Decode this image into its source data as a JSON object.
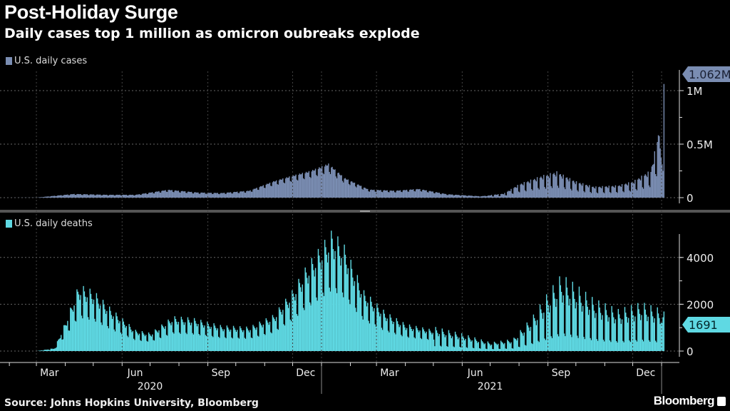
{
  "header": {
    "title": "Post-Holiday Surge",
    "subtitle": "Daily cases top 1 million as omicron oubreaks explode"
  },
  "footer": {
    "source": "Source: Johns Hopkins University, Bloomberg",
    "logo": "Bloomberg"
  },
  "chart_data": [
    {
      "type": "bar",
      "series_name": "U.S. daily cases",
      "color": "#7a8db2",
      "unit": "cases (millions)",
      "yticks": [
        {
          "v": 0,
          "label": "0"
        },
        {
          "v": 0.5,
          "label": "0.5M"
        },
        {
          "v": 1,
          "label": "1M"
        }
      ],
      "ylim": [
        0,
        1.1
      ],
      "last_value_label": "1.062M",
      "last_value": 1.062,
      "points": [
        [
          "2020-01-22",
          0
        ],
        [
          "2020-03-01",
          0.001
        ],
        [
          "2020-03-25",
          0.02
        ],
        [
          "2020-04-10",
          0.032
        ],
        [
          "2020-05-15",
          0.025
        ],
        [
          "2020-06-15",
          0.025
        ],
        [
          "2020-07-20",
          0.068
        ],
        [
          "2020-08-20",
          0.045
        ],
        [
          "2020-09-15",
          0.04
        ],
        [
          "2020-10-15",
          0.06
        ],
        [
          "2020-11-10",
          0.14
        ],
        [
          "2020-12-01",
          0.19
        ],
        [
          "2020-12-20",
          0.23
        ],
        [
          "2021-01-08",
          0.29
        ],
        [
          "2021-01-25",
          0.17
        ],
        [
          "2021-02-20",
          0.07
        ],
        [
          "2021-03-20",
          0.06
        ],
        [
          "2021-04-15",
          0.075
        ],
        [
          "2021-05-15",
          0.03
        ],
        [
          "2021-06-20",
          0.012
        ],
        [
          "2021-07-15",
          0.03
        ],
        [
          "2021-08-01",
          0.1
        ],
        [
          "2021-08-25",
          0.16
        ],
        [
          "2021-09-10",
          0.19
        ],
        [
          "2021-09-30",
          0.12
        ],
        [
          "2021-10-20",
          0.08
        ],
        [
          "2021-11-15",
          0.09
        ],
        [
          "2021-12-01",
          0.12
        ],
        [
          "2021-12-20",
          0.2
        ],
        [
          "2021-12-29",
          0.5
        ],
        [
          "2022-01-02",
          0.25
        ],
        [
          "2022-01-03",
          1.062
        ]
      ]
    },
    {
      "type": "bar",
      "series_name": "U.S. daily deaths",
      "color": "#5fd9e3",
      "unit": "deaths",
      "yticks": [
        {
          "v": 0,
          "label": "0"
        },
        {
          "v": 2000,
          "label": "2000"
        },
        {
          "v": 4000,
          "label": "4000"
        }
      ],
      "ylim": [
        0,
        5000
      ],
      "last_value_label": "1691",
      "last_value": 1691,
      "points": [
        [
          "2020-01-22",
          0
        ],
        [
          "2020-03-01",
          0
        ],
        [
          "2020-03-20",
          100
        ],
        [
          "2020-04-01",
          1000
        ],
        [
          "2020-04-15",
          2200
        ],
        [
          "2020-05-01",
          2000
        ],
        [
          "2020-05-20",
          1400
        ],
        [
          "2020-06-15",
          700
        ],
        [
          "2020-07-01",
          600
        ],
        [
          "2020-07-25",
          1150
        ],
        [
          "2020-08-15",
          1100
        ],
        [
          "2020-09-15",
          850
        ],
        [
          "2020-10-15",
          800
        ],
        [
          "2020-11-10",
          1200
        ],
        [
          "2020-11-30",
          2000
        ],
        [
          "2020-12-15",
          2800
        ],
        [
          "2021-01-12",
          4000
        ],
        [
          "2021-01-25",
          3500
        ],
        [
          "2021-02-15",
          2000
        ],
        [
          "2021-03-10",
          1300
        ],
        [
          "2021-04-01",
          900
        ],
        [
          "2021-05-01",
          700
        ],
        [
          "2021-06-01",
          500
        ],
        [
          "2021-07-01",
          250
        ],
        [
          "2021-07-25",
          350
        ],
        [
          "2021-08-15",
          1000
        ],
        [
          "2021-09-01",
          1700
        ],
        [
          "2021-09-15",
          2200
        ],
        [
          "2021-10-01",
          1900
        ],
        [
          "2021-10-20",
          1500
        ],
        [
          "2021-11-15",
          1200
        ],
        [
          "2021-12-10",
          1400
        ],
        [
          "2022-01-01",
          1200
        ],
        [
          "2022-01-03",
          1691
        ]
      ]
    }
  ],
  "xaxis": {
    "months": [
      {
        "date": "2020-03-15",
        "label": "Mar"
      },
      {
        "date": "2020-06-15",
        "label": "Jun"
      },
      {
        "date": "2020-09-15",
        "label": "Sep"
      },
      {
        "date": "2020-12-15",
        "label": "Dec"
      },
      {
        "date": "2021-03-15",
        "label": "Mar"
      },
      {
        "date": "2021-06-15",
        "label": "Jun"
      },
      {
        "date": "2021-09-15",
        "label": "Sep"
      },
      {
        "date": "2021-12-15",
        "label": "Dec"
      }
    ],
    "years": [
      {
        "date": "2020-07-01",
        "label": "2020"
      },
      {
        "date": "2021-07-01",
        "label": "2021"
      }
    ]
  }
}
